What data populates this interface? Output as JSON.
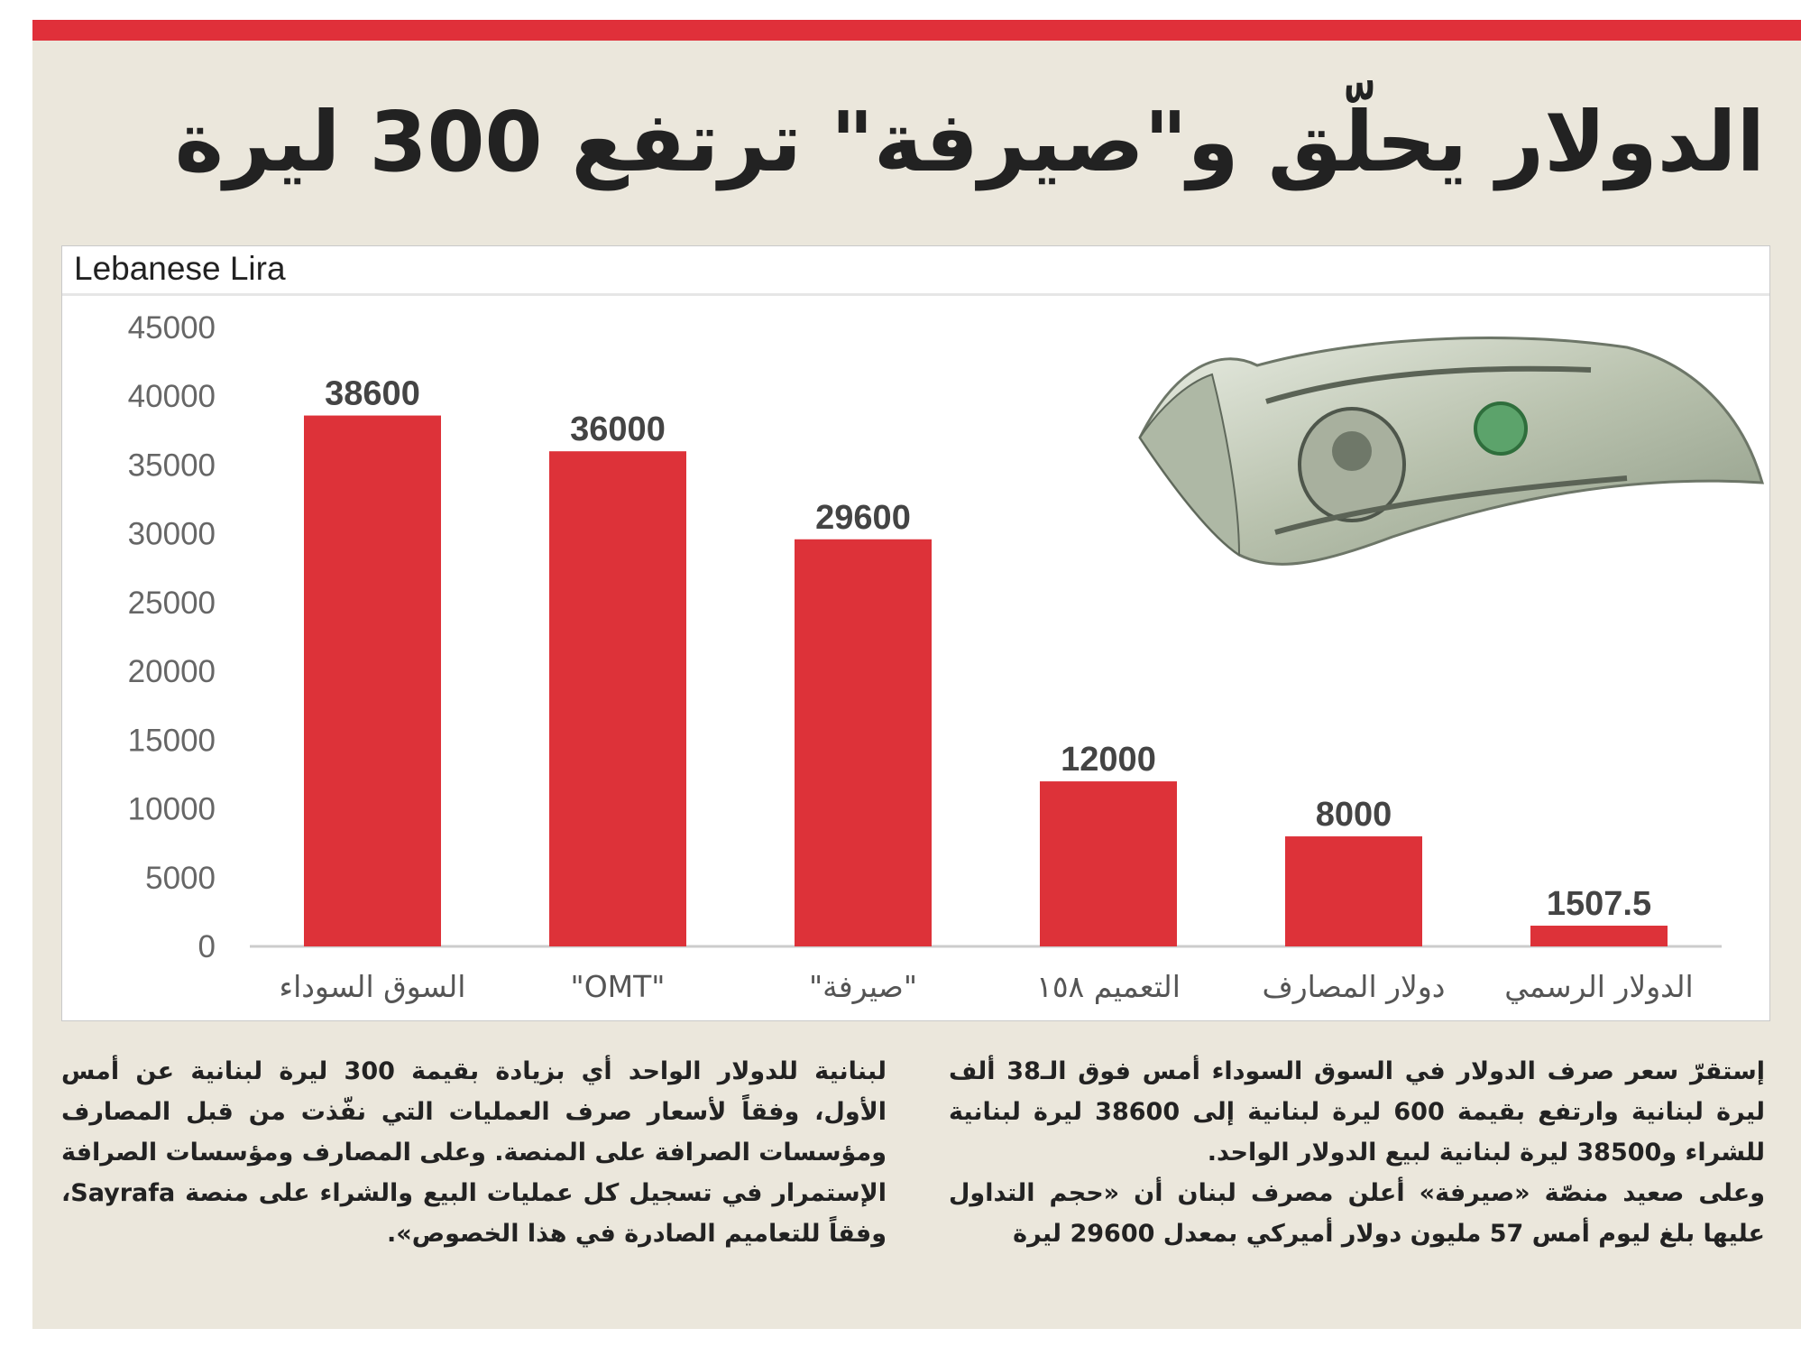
{
  "headline": "الدولار يحلّق و\"صيرفة\" ترتفع 300 ليرة",
  "chart_data": {
    "type": "bar",
    "title": "Lebanese Lira",
    "categories": [
      "السوق السوداء",
      "\"OMT\"",
      "\"صيرفة\"",
      "التعميم ١٥٨",
      "دولار المصارف",
      "الدولار الرسمي"
    ],
    "values": [
      38600,
      36000,
      29600,
      12000,
      8000,
      1507.5
    ],
    "value_labels": [
      "38600",
      "36000",
      "29600",
      "12000",
      "8000",
      "1507.5"
    ],
    "yticks": [
      "0",
      "5000",
      "10000",
      "15000",
      "20000",
      "25000",
      "30000",
      "35000",
      "40000",
      "45000"
    ],
    "ylim": [
      0,
      45000
    ],
    "bar_color": "#dd3239",
    "grid": false,
    "legend": "none"
  },
  "article": {
    "right_column": [
      "إستقرّ سعر صرف الدولار في السوق السوداء أمس فوق الـ38 ألف ليرة لبنانية وارتفع بقيمة 600 ليرة لبنانية إلى 38600 ليرة لبنانية للشراء و38500 ليرة لبنانية لبيع الدولار الواحد.",
      "وعلى صعيد منصّة «صيرفة» أعلن مصرف لبنان أن «حجم التداول عليها بلغ ليوم أمس 57 مليون دولار أميركي بمعدل 29600 ليرة"
    ],
    "left_column": "لبنانية للدولار الواحد أي بزيادة بقيمة 300 ليرة لبنانية عن أمس الأول، وفقاً لأسعار صرف العمليات التي نفّذت من قبل المصارف ومؤسسات الصرافة على المنصة. وعلى المصارف ومؤسسات الصرافة الإستمرار في تسجيل كل عمليات البيع والشراء على منصة Sayrafa، وفقاً للتعاميم الصادرة في هذا الخصوص»."
  },
  "colors": {
    "accent": "#e0303a",
    "panel": "#ebe7dc"
  },
  "illustration": "dollar-bill"
}
